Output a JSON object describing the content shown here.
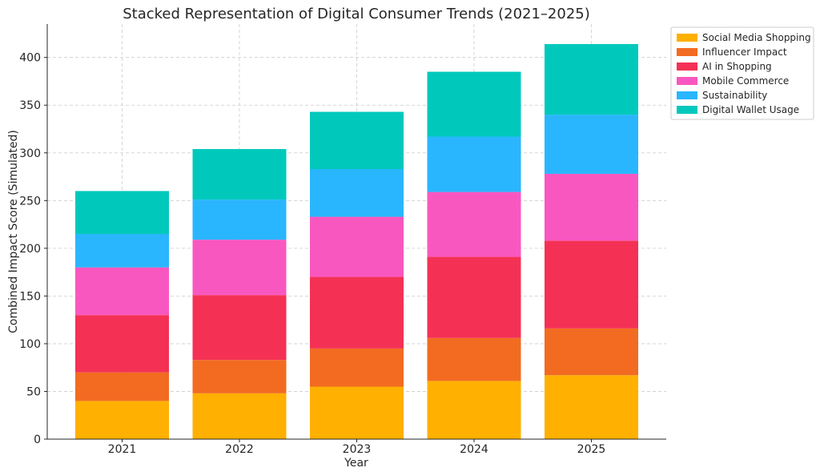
{
  "chart_data": {
    "type": "bar",
    "stacked": true,
    "title": "Stacked Representation of Digital Consumer Trends (2021–2025)",
    "xlabel": "Year",
    "ylabel": "Combined Impact Score (Simulated)",
    "categories": [
      "2021",
      "2022",
      "2023",
      "2024",
      "2025"
    ],
    "ylim": [
      0,
      435
    ],
    "yticks": [
      "0",
      "50",
      "100",
      "150",
      "200",
      "250",
      "300",
      "350",
      "400"
    ],
    "grid": true,
    "legend_position": "top-right outside",
    "series": [
      {
        "name": "Social Media Shopping",
        "color": "#FFB000",
        "values": [
          40,
          48,
          55,
          61,
          67
        ]
      },
      {
        "name": "Influencer Impact",
        "color": "#F26B21",
        "values": [
          30,
          35,
          40,
          45,
          49
        ]
      },
      {
        "name": "AI in Shopping",
        "color": "#F43155",
        "values": [
          60,
          68,
          75,
          85,
          92
        ]
      },
      {
        "name": "Mobile Commerce",
        "color": "#F957C0",
        "values": [
          50,
          58,
          63,
          68,
          70
        ]
      },
      {
        "name": "Sustainability",
        "color": "#29B6FF",
        "values": [
          35,
          42,
          50,
          58,
          62
        ]
      },
      {
        "name": "Digital Wallet Usage",
        "color": "#00C9BC",
        "values": [
          45,
          53,
          60,
          68,
          74
        ]
      }
    ]
  }
}
